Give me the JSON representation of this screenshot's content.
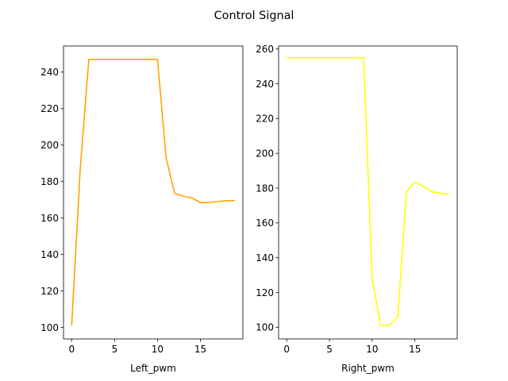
{
  "figure": {
    "title": "Control Signal"
  },
  "chart_data": [
    {
      "type": "line",
      "title": "",
      "xlabel": "Left_pwm",
      "ylabel": "",
      "xlim": [
        -0.95,
        19.95
      ],
      "ylim": [
        93.7,
        254.3
      ],
      "xticks": [
        0,
        5,
        10,
        15
      ],
      "yticks": [
        100,
        120,
        140,
        160,
        180,
        200,
        220,
        240
      ],
      "grid": false,
      "series": [
        {
          "color": "#ffa500",
          "x": [
            0,
            1,
            2,
            3,
            4,
            5,
            6,
            7,
            8,
            9,
            10,
            11,
            12,
            13,
            14,
            15,
            16,
            17,
            18,
            19
          ],
          "y": [
            101,
            187,
            247,
            247,
            247,
            247,
            247,
            247,
            247,
            247,
            247,
            193,
            173.5,
            172,
            171,
            168.5,
            168.5,
            169,
            169.5,
            169.5
          ]
        }
      ]
    },
    {
      "type": "line",
      "title": "",
      "xlabel": "Right_pwm",
      "ylabel": "",
      "xlim": [
        -0.95,
        19.95
      ],
      "ylim": [
        93.3,
        261.7
      ],
      "xticks": [
        0,
        5,
        10,
        15
      ],
      "yticks": [
        100,
        120,
        140,
        160,
        180,
        200,
        220,
        240,
        260
      ],
      "grid": false,
      "series": [
        {
          "color": "#ffff00",
          "x": [
            0,
            1,
            2,
            3,
            4,
            5,
            6,
            7,
            8,
            9,
            10,
            11,
            12,
            13,
            14,
            15,
            16,
            17,
            18,
            19
          ],
          "y": [
            255,
            255,
            255,
            255,
            255,
            255,
            255,
            255,
            255,
            255,
            128,
            101,
            101,
            106,
            178,
            183.5,
            181,
            178,
            177,
            176.5
          ]
        }
      ]
    }
  ]
}
